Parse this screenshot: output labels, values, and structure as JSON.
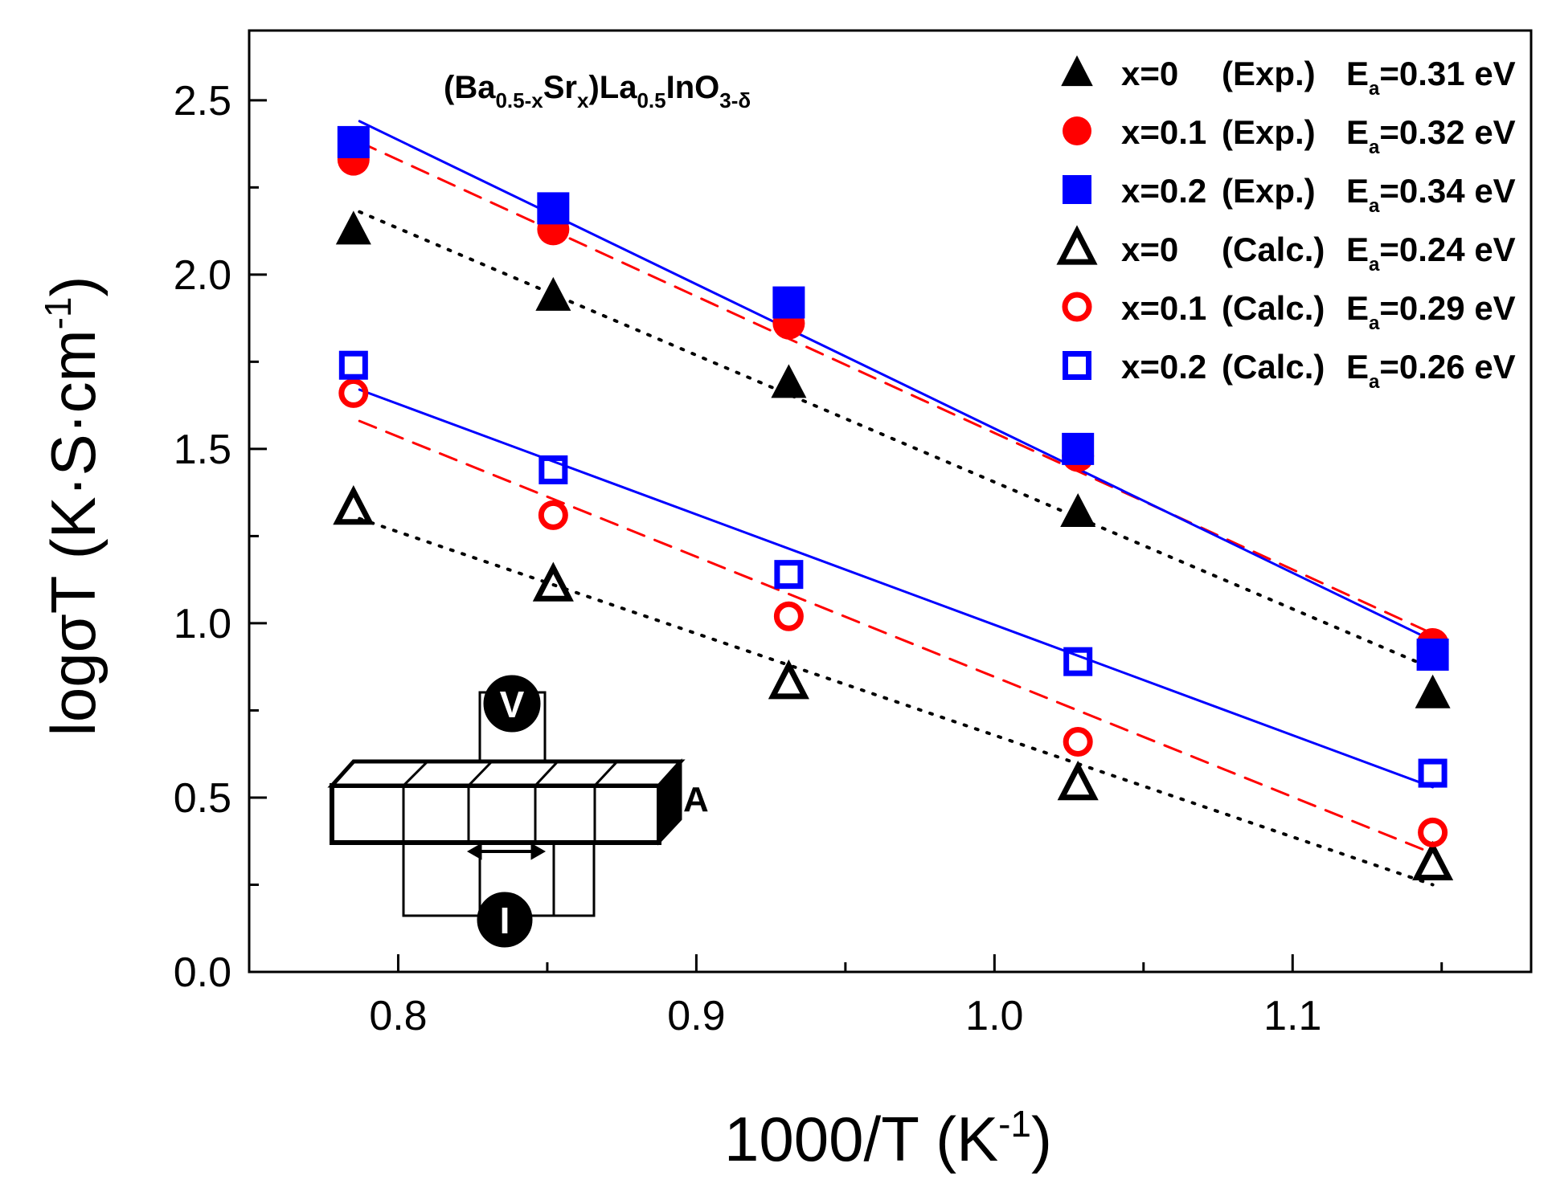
{
  "chart_data": {
    "type": "scatter",
    "title": {
      "main": "(Ba",
      "sub1": "0.5-x",
      "mid1": "Sr",
      "sub2": "x",
      "mid2": ")La",
      "sub3": "0.5",
      "mid3": "InO",
      "sub4": "3-δ"
    },
    "xlabel": {
      "main": "1000/T (K",
      "sup": "-1",
      "tail": ")"
    },
    "ylabel": {
      "main": "logσT (K·S·cm",
      "sup": "-1",
      "tail": ")"
    },
    "xlim": [
      0.75,
      1.18
    ],
    "ylim": [
      0.0,
      2.7
    ],
    "xticks": [
      0.8,
      0.9,
      1.0,
      1.1
    ],
    "xtick_labels": [
      "0.8",
      "0.9",
      "1.0",
      "1.1"
    ],
    "xminor": [
      0.75,
      0.85,
      0.95,
      1.05,
      1.15
    ],
    "yticks": [
      0.0,
      0.5,
      1.0,
      1.5,
      2.0,
      2.5
    ],
    "ytick_labels": [
      "0.0",
      "0.5",
      "1.0",
      "1.5",
      "2.0",
      "2.5"
    ],
    "yminor": [
      0.25,
      0.75,
      1.25,
      1.75,
      2.25
    ],
    "grid": false,
    "legend_position": "top-right",
    "x": [
      0.785,
      0.852,
      0.931,
      1.028,
      1.147
    ],
    "series": [
      {
        "name": "x=0 (Exp.)",
        "label_x": "x=0",
        "label_type": "(Exp.)",
        "label_ea": "=0.31 eV",
        "marker": "triangle",
        "filled": true,
        "color": "#000000",
        "values": [
          2.13,
          1.94,
          1.69,
          1.32,
          0.8
        ],
        "fit": {
          "style": "dotted",
          "x": [
            0.787,
            1.147
          ],
          "y": [
            2.18,
            0.87
          ]
        }
      },
      {
        "name": "x=0.1 (Exp.)",
        "label_x": "x=0.1",
        "label_type": "(Exp.)",
        "label_ea": "=0.32 eV",
        "marker": "circle",
        "filled": true,
        "color": "#ff0000",
        "values": [
          2.33,
          2.13,
          1.86,
          1.48,
          0.94
        ],
        "fit": {
          "style": "dashed",
          "x": [
            0.787,
            1.147
          ],
          "y": [
            2.38,
            0.97
          ]
        }
      },
      {
        "name": "x=0.2 (Exp.)",
        "label_x": "x=0.2",
        "label_type": "(Exp.)",
        "label_ea": "=0.34 eV",
        "marker": "square",
        "filled": true,
        "color": "#0000ff",
        "values": [
          2.38,
          2.19,
          1.92,
          1.5,
          0.91
        ],
        "fit": {
          "style": "solid",
          "x": [
            0.787,
            1.147
          ],
          "y": [
            2.44,
            0.95
          ]
        }
      },
      {
        "name": "x=0 (Calc.)",
        "label_x": "x=0",
        "label_type": "(Calc.)",
        "label_ea": "=0.24 eV",
        "marker": "triangle",
        "filled": false,
        "color": "#000000",
        "values": [
          1.33,
          1.11,
          0.83,
          0.54,
          0.31
        ],
        "fit": {
          "style": "dotted",
          "x": [
            0.787,
            1.147
          ],
          "y": [
            1.3,
            0.25
          ]
        }
      },
      {
        "name": "x=0.1 (Calc.)",
        "label_x": "x=0.1",
        "label_type": "(Calc.)",
        "label_ea": "=0.29 eV",
        "marker": "circle",
        "filled": false,
        "color": "#ff0000",
        "values": [
          1.66,
          1.31,
          1.02,
          0.66,
          0.4
        ],
        "fit": {
          "style": "dashed",
          "x": [
            0.787,
            1.147
          ],
          "y": [
            1.58,
            0.34
          ]
        }
      },
      {
        "name": "x=0.2 (Calc.)",
        "label_x": "x=0.2",
        "label_type": "(Calc.)",
        "label_ea": "=0.26 eV",
        "marker": "square",
        "filled": false,
        "color": "#0000ff",
        "values": [
          1.74,
          1.44,
          1.14,
          0.89,
          0.57
        ],
        "fit": {
          "style": "solid",
          "x": [
            0.787,
            1.147
          ],
          "y": [
            1.67,
            0.53
          ]
        }
      }
    ],
    "legend_ea": {
      "main": "E",
      "sub": "a"
    },
    "inset": {
      "voltmeter_label": "V",
      "ammeter_label": "I",
      "area_label": "A"
    }
  }
}
